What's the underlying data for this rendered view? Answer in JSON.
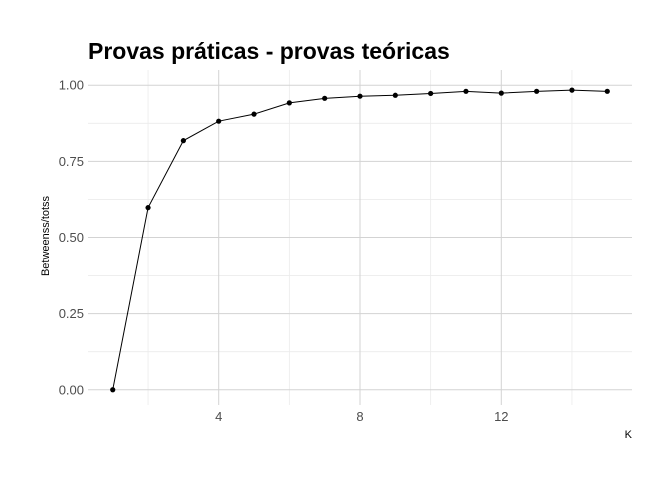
{
  "chart_data": {
    "type": "line",
    "title": "Provas práticas - provas teóricas",
    "xlabel": "K",
    "ylabel": "Betweenss/totss",
    "x": [
      1,
      2,
      3,
      4,
      5,
      6,
      7,
      8,
      9,
      10,
      11,
      12,
      13,
      14,
      15
    ],
    "series": [
      {
        "values": [
          0.0,
          0.598,
          0.818,
          0.882,
          0.905,
          0.942,
          0.957,
          0.964,
          0.967,
          0.973,
          0.98,
          0.974,
          0.98,
          0.984,
          0.98
        ]
      }
    ],
    "xlim": [
      0.3,
      15.7
    ],
    "ylim": [
      -0.05,
      1.05
    ],
    "x_ticks": [
      4,
      8,
      12
    ],
    "x_tick_labels": [
      "4",
      "8",
      "12"
    ],
    "y_ticks": [
      0,
      0.25,
      0.5,
      0.75,
      1.0
    ],
    "y_tick_labels": [
      "0.00",
      "0.25",
      "0.50",
      "0.75",
      "1.00"
    ],
    "grid": true,
    "legend": "none",
    "colors": {
      "line": "#000000",
      "points": "#000000",
      "grid": "#d3d3d3",
      "background": "#ffffff"
    }
  }
}
